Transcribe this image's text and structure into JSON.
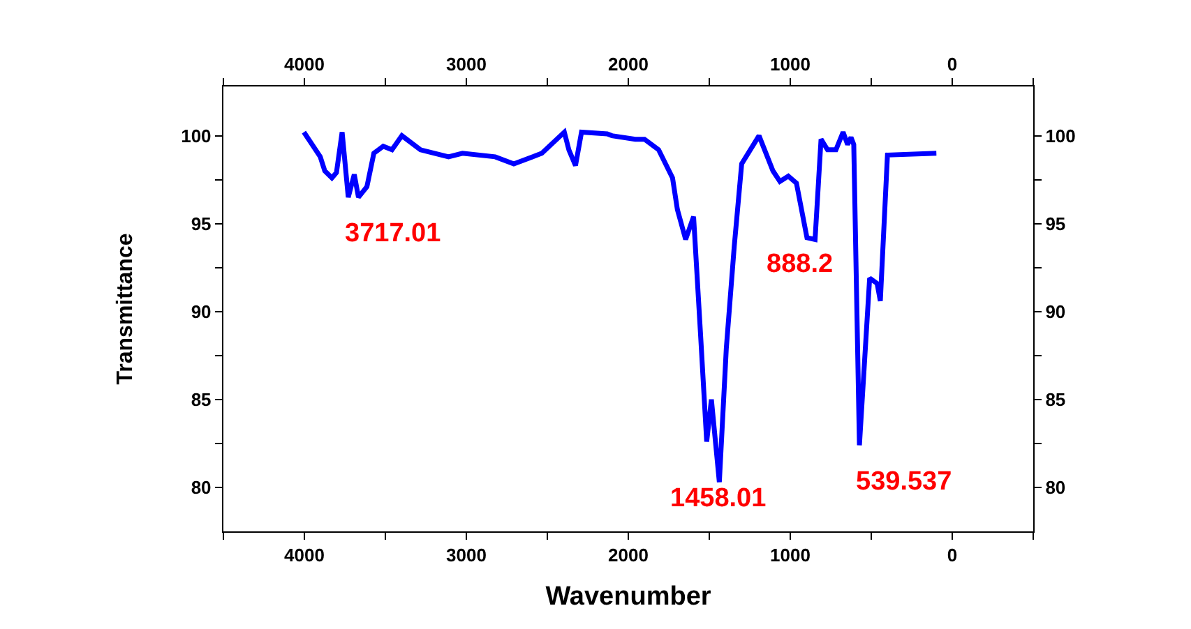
{
  "chart_data": {
    "type": "line",
    "xlabel": "Wavenumber",
    "ylabel": "Transmittance",
    "x": [
      4003,
      3902,
      3874,
      3830,
      3802,
      3767,
      3729,
      3692,
      3666,
      3614,
      3571,
      3513,
      3459,
      3398,
      3283,
      3110,
      3024,
      2822,
      2707,
      2534,
      2395,
      2367,
      2326,
      2289,
      2130,
      2101,
      1957,
      1900,
      1813,
      1727,
      1697,
      1646,
      1597,
      1554,
      1516,
      1487,
      1438,
      1395,
      1346,
      1300,
      1193,
      1107,
      1064,
      1012,
      962,
      897,
      847,
      810,
      770,
      718,
      674,
      646,
      625,
      608,
      573,
      510,
      464,
      444,
      400,
      98
    ],
    "series": [
      {
        "color": "#0000ff",
        "values": [
          100.2,
          98.8,
          98.0,
          97.6,
          97.9,
          100.2,
          96.5,
          97.8,
          96.5,
          97.1,
          99.0,
          99.4,
          99.2,
          100.0,
          99.2,
          98.8,
          99.0,
          98.8,
          98.4,
          99.0,
          100.2,
          99.2,
          98.3,
          100.2,
          100.1,
          100.0,
          99.8,
          99.8,
          99.2,
          97.6,
          95.8,
          94.1,
          95.4,
          88.7,
          82.6,
          85.0,
          80.3,
          87.9,
          93.7,
          98.4,
          100.0,
          98.0,
          97.4,
          97.7,
          97.3,
          94.2,
          94.1,
          99.8,
          99.2,
          99.2,
          100.2,
          99.5,
          99.9,
          99.5,
          82.4,
          91.9,
          91.6,
          90.6,
          98.9,
          99.0
        ]
      }
    ],
    "xlim": [
      4500,
      -500
    ],
    "ylim": [
      77.5,
      102.8
    ],
    "x2lim": [
      4500,
      -500
    ],
    "y2lim": [
      77.5,
      102.8
    ],
    "xticks": [
      {
        "value": 4500,
        "label": null
      },
      4000,
      {
        "value": 3500,
        "label": null
      },
      3000,
      {
        "value": 2500,
        "label": null
      },
      2000,
      {
        "value": 1500,
        "label": null
      },
      1000,
      {
        "value": 500,
        "label": null
      },
      0,
      {
        "value": -500,
        "label": null
      }
    ],
    "x2ticks": [
      {
        "value": 4500,
        "label": null
      },
      4000,
      {
        "value": 3500,
        "label": null
      },
      3000,
      {
        "value": 2500,
        "label": null
      },
      2000,
      {
        "value": 1500,
        "label": null
      },
      1000,
      {
        "value": 500,
        "label": null
      },
      0,
      {
        "value": -500,
        "label": null
      }
    ],
    "yticks": [
      80,
      {
        "value": 82.5,
        "label": null
      },
      85,
      {
        "value": 87.5,
        "label": null
      },
      90,
      {
        "value": 92.5,
        "label": null
      },
      95,
      {
        "value": 97.5,
        "label": null
      },
      100
    ],
    "y2ticks": [
      80,
      {
        "value": 82.5,
        "label": null
      },
      85,
      {
        "value": 87.5,
        "label": null
      },
      90,
      {
        "value": 92.5,
        "label": null
      },
      95,
      {
        "value": 97.5,
        "label": null
      },
      100
    ],
    "annotations": [
      "3717.01",
      "1458.01",
      "888.2",
      "539.537"
    ],
    "marker": "none",
    "line_style": "solid"
  }
}
